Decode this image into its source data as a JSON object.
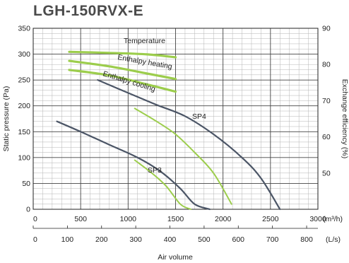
{
  "chart_data": {
    "type": "line",
    "title": "LGH-150RVX-E",
    "left_axis": {
      "label": "Static pressure (Pa)",
      "range": [
        0,
        350
      ],
      "ticks": [
        "0",
        "50",
        "100",
        "150",
        "200",
        "250",
        "300",
        "350"
      ]
    },
    "right_axis": {
      "label": "Exchange efficiency (%)",
      "range": [
        40,
        90
      ],
      "ticks": [
        "50",
        "60",
        "70",
        "80",
        "90"
      ]
    },
    "x_axis_m3h": {
      "range": [
        0,
        3000
      ],
      "ticks": [
        "0",
        "500",
        "1000",
        "1500",
        "2000",
        "2500",
        "3000"
      ],
      "unit": "(m³/h)"
    },
    "x_axis_ls": {
      "range": [
        0,
        833
      ],
      "ticks": [
        "0",
        "100",
        "200",
        "300",
        "400",
        "500",
        "600",
        "700",
        "800"
      ],
      "unit": "(L/s)"
    },
    "xlabel": "Air volume",
    "grid": true,
    "pressure_series": [
      {
        "name": "SP4",
        "color": "#4b5566",
        "points": [
          [
            680,
            250
          ],
          [
            1000,
            225
          ],
          [
            1300,
            202
          ],
          [
            1600,
            180
          ],
          [
            1900,
            145
          ],
          [
            2200,
            100
          ],
          [
            2400,
            60
          ],
          [
            2600,
            0
          ]
        ]
      },
      {
        "name": "SP3",
        "color": "#4b5566",
        "points": [
          [
            250,
            170
          ],
          [
            500,
            150
          ],
          [
            800,
            125
          ],
          [
            1100,
            100
          ],
          [
            1350,
            72
          ],
          [
            1550,
            40
          ],
          [
            1700,
            10
          ],
          [
            1860,
            0
          ]
        ]
      },
      {
        "name": "",
        "color": "#9ccd4c",
        "points": [
          [
            1070,
            195
          ],
          [
            1300,
            170
          ],
          [
            1500,
            145
          ],
          [
            1700,
            110
          ],
          [
            1900,
            70
          ],
          [
            2090,
            10
          ]
        ]
      },
      {
        "name": "",
        "color": "#9ccd4c",
        "points": [
          [
            1070,
            95
          ],
          [
            1250,
            70
          ],
          [
            1400,
            45
          ],
          [
            1550,
            10
          ],
          [
            1660,
            0
          ]
        ]
      }
    ],
    "efficiency_series": [
      {
        "name": "Temperature",
        "color": "#9ccd4c",
        "points": [
          [
            380,
            83.5
          ],
          [
            800,
            83.2
          ],
          [
            1200,
            82.8
          ],
          [
            1500,
            82
          ]
        ]
      },
      {
        "name": "Enthalpy heating",
        "color": "#9ccd4c",
        "points": [
          [
            380,
            81
          ],
          [
            800,
            79.5
          ],
          [
            1200,
            77.5
          ],
          [
            1500,
            76
          ]
        ]
      },
      {
        "name": "Enthalpy cooling",
        "color": "#9ccd4c",
        "points": [
          [
            380,
            78.5
          ],
          [
            800,
            77
          ],
          [
            1200,
            74.5
          ],
          [
            1500,
            72.5
          ]
        ]
      }
    ],
    "annotations": [
      "Temperature",
      "Enthalpy heating",
      "Enthalpy cooling",
      "SP4",
      "SP3"
    ]
  }
}
